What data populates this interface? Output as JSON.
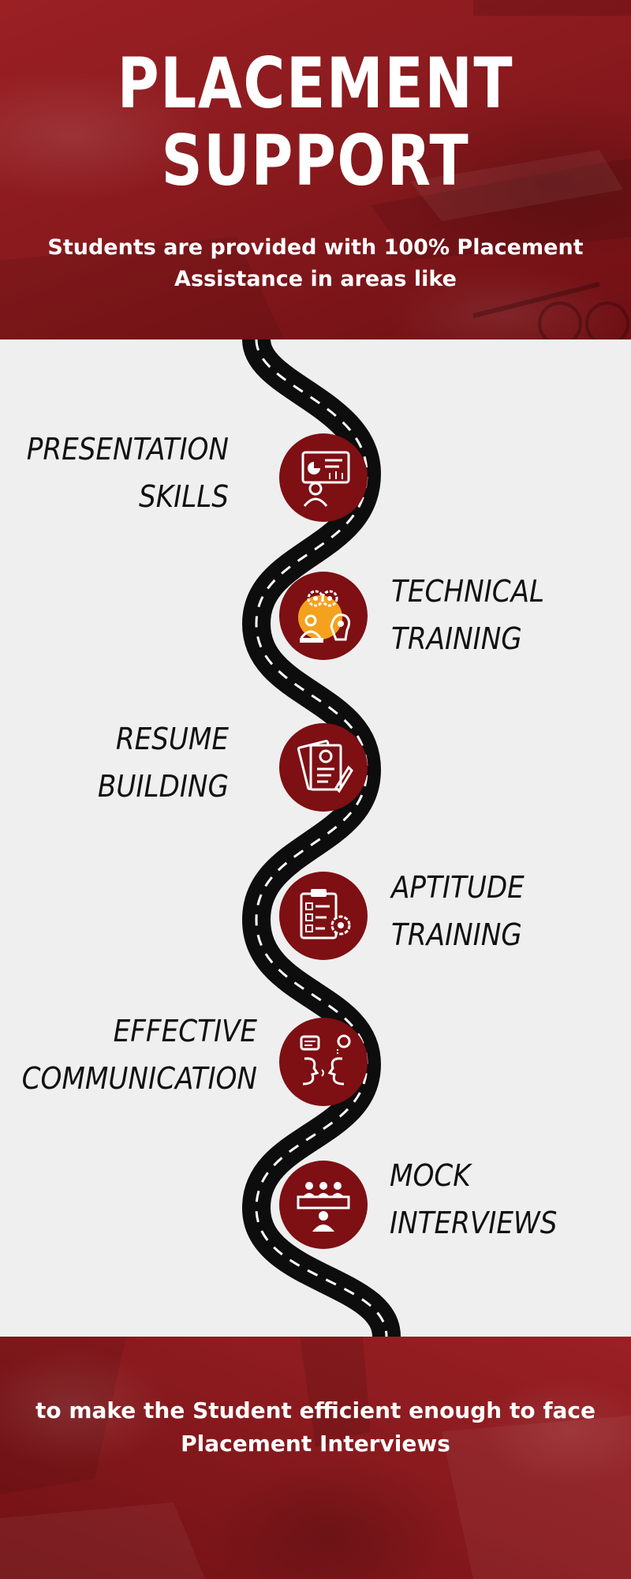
{
  "header": {
    "title_line1": "PLACEMENT",
    "title_line2": "SUPPORT",
    "subtitle": "Students are provided with 100% Placement Assistance in areas like"
  },
  "areas": [
    {
      "line1": "PRESENTATION",
      "line2": "SKILLS",
      "icon": "presentation-icon"
    },
    {
      "line1": "TECHNICAL",
      "line2": "TRAINING",
      "icon": "technical-training-icon"
    },
    {
      "line1": "RESUME",
      "line2": "BUILDING",
      "icon": "resume-icon"
    },
    {
      "line1": "APTITUDE",
      "line2": "TRAINING",
      "icon": "aptitude-icon"
    },
    {
      "line1": "EFFECTIVE",
      "line2": "COMMUNICATION",
      "icon": "communication-icon"
    },
    {
      "line1": "MOCK",
      "line2": "INTERVIEWS",
      "icon": "interview-icon"
    }
  ],
  "footer": {
    "text": "to make the Student efficient enough to face Placement Interviews"
  },
  "colors": {
    "brand_red": "#8a1a1e",
    "icon_circle": "#7e0f13",
    "accent_orange": "#f4a11d",
    "road": "#0d0d0d",
    "background": "#efefef"
  }
}
